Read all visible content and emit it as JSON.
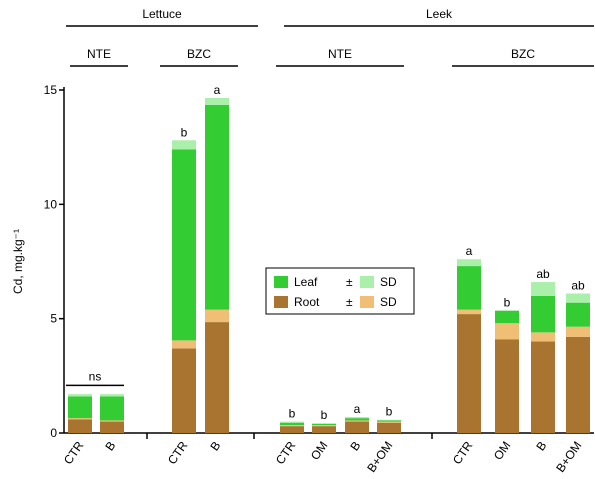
{
  "chart_data": {
    "type": "bar",
    "stacked": true,
    "ylabel": "Cd, mg.kg⁻¹",
    "ylim": [
      0,
      15
    ],
    "yticks": [
      0,
      5,
      10,
      15
    ],
    "groups": [
      {
        "label": "Lettuce",
        "subgroups": [
          {
            "label": "NTE",
            "categories": [
              "CTR",
              "B"
            ]
          },
          {
            "label": "BZC",
            "categories": [
              "CTR",
              "B"
            ]
          }
        ]
      },
      {
        "label": "Leek",
        "subgroups": [
          {
            "label": "NTE",
            "categories": [
              "CTR",
              "OM",
              "B",
              "B+OM"
            ]
          },
          {
            "label": "BZC",
            "categories": [
              "CTR",
              "OM",
              "B",
              "B+OM"
            ]
          }
        ]
      }
    ],
    "bars": [
      {
        "category": "CTR",
        "root": 0.6,
        "root_sd": 0.05,
        "leaf": 1.0,
        "leaf_sd": 0.1,
        "letter": ""
      },
      {
        "category": "B",
        "root": 0.5,
        "root_sd": 0.05,
        "leaf": 1.1,
        "leaf_sd": 0.1,
        "letter": ""
      },
      {
        "category": "CTR",
        "root": 3.7,
        "root_sd": 0.35,
        "leaf": 8.7,
        "leaf_sd": 0.4,
        "letter": "b"
      },
      {
        "category": "B",
        "root": 4.85,
        "root_sd": 0.55,
        "leaf": 9.5,
        "leaf_sd": 0.3,
        "letter": "a"
      },
      {
        "category": "CTR",
        "root": 0.3,
        "root_sd": 0.05,
        "leaf": 0.15,
        "leaf_sd": 0.05,
        "letter": "b"
      },
      {
        "category": "OM",
        "root": 0.3,
        "root_sd": 0.05,
        "leaf": 0.1,
        "leaf_sd": 0.03,
        "letter": "b"
      },
      {
        "category": "B",
        "root": 0.5,
        "root_sd": 0.05,
        "leaf": 0.15,
        "leaf_sd": 0.05,
        "letter": "a"
      },
      {
        "category": "B+OM",
        "root": 0.45,
        "root_sd": 0.05,
        "leaf": 0.1,
        "leaf_sd": 0.03,
        "letter": "b"
      },
      {
        "category": "CTR",
        "root": 5.2,
        "root_sd": 0.2,
        "leaf": 2.1,
        "leaf_sd": 0.3,
        "letter": "a"
      },
      {
        "category": "OM",
        "root": 4.1,
        "root_sd": 0.7,
        "leaf": 1.25,
        "leaf_sd": 0.0,
        "letter": "b"
      },
      {
        "category": "B",
        "root": 4.0,
        "root_sd": 0.4,
        "leaf": 2.0,
        "leaf_sd": 0.6,
        "letter": "ab"
      },
      {
        "category": "B+OM",
        "root": 4.2,
        "root_sd": 0.45,
        "leaf": 1.5,
        "leaf_sd": 0.4,
        "letter": "ab"
      }
    ],
    "ns_annotation": "ns",
    "legend": {
      "placement": "center",
      "entries": [
        {
          "label": "Leaf",
          "color": "#33cc33"
        },
        {
          "label": "Root",
          "color": "#a87430"
        }
      ],
      "sd_label": "SD",
      "sd_colors": {
        "leaf": "#aaf0aa",
        "root": "#f0bf75"
      }
    },
    "colors": {
      "leaf": "#33cc33",
      "root": "#a87430",
      "leaf_sd": "#aaf0aa",
      "root_sd": "#f0bf75"
    }
  }
}
